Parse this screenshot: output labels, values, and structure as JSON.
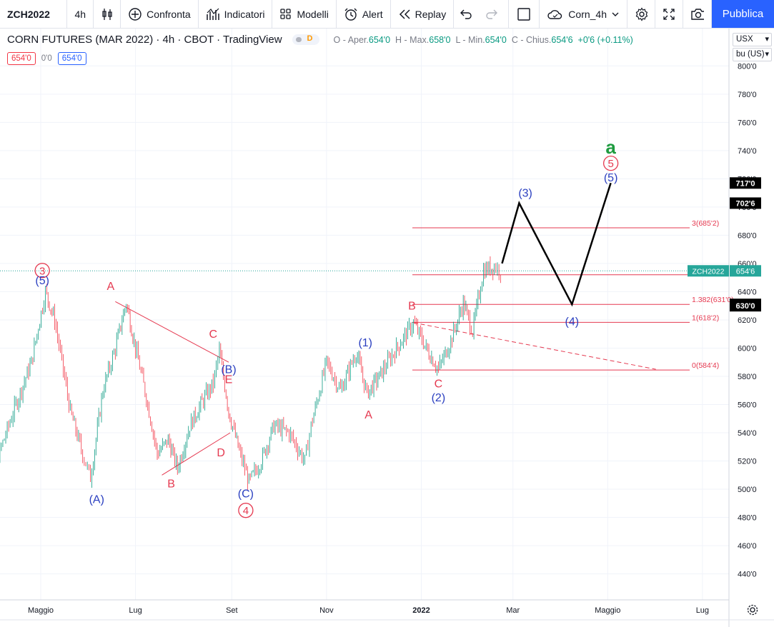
{
  "toolbar": {
    "symbol": "ZCH2022",
    "interval": "4h",
    "compare": "Confronta",
    "indicators": "Indicatori",
    "templates": "Modelli",
    "alert": "Alert",
    "replay": "Replay",
    "layout": "Corn_4h",
    "publish": "Pubblica"
  },
  "legend": {
    "title": "CORN FUTURES (MAR 2022) · 4h · CBOT · TradingView",
    "badge": "D",
    "o_label": "O - Aper.",
    "o": "654'0",
    "h_label": "H - Max.",
    "h": "658'0",
    "l_label": "L - Min.",
    "l": "654'0",
    "c_label": "C - Chius.",
    "c": "654'6",
    "change": "+0'6 (+0.11%)"
  },
  "pricebox": {
    "bid": "654'0",
    "spread": "0'0",
    "ask": "654'0"
  },
  "axis_controls": {
    "currency": "USX",
    "unit": "bu (US)"
  },
  "colors": {
    "accent": "#2962ff",
    "up": "#089981",
    "down": "#f23645",
    "wave_red": "#e53950",
    "wave_blue": "#2a3fc0",
    "wave_green": "#1e9b3f"
  },
  "chart_data": {
    "type": "candlestick",
    "symbol": "ZCH2022",
    "last_price": 654.75,
    "last_price_label": "654'6",
    "y_ticks": [
      "800'0",
      "780'0",
      "760'0",
      "740'0",
      "720'0",
      "700'0",
      "680'0",
      "660'0",
      "640'0",
      "620'0",
      "600'0",
      "580'0",
      "560'0",
      "540'0",
      "520'0",
      "500'0",
      "480'0",
      "460'0",
      "440'0"
    ],
    "y_tick_values": [
      800,
      780,
      760,
      740,
      720,
      700,
      680,
      660,
      640,
      620,
      600,
      580,
      560,
      540,
      520,
      500,
      480,
      460,
      440
    ],
    "x_ticks": [
      {
        "label": "Maggio",
        "date": "2021-05-01"
      },
      {
        "label": "Lug",
        "date": "2021-07-01"
      },
      {
        "label": "Set",
        "date": "2021-09-01"
      },
      {
        "label": "Nov",
        "date": "2021-11-01"
      },
      {
        "label": "2022",
        "date": "2022-01-01"
      },
      {
        "label": "Mar",
        "date": "2022-03-01"
      },
      {
        "label": "Maggio",
        "date": "2022-05-01"
      },
      {
        "label": "Lug",
        "date": "2022-07-01"
      }
    ],
    "price_path": [
      {
        "date": "2021-03-21",
        "price": 490
      },
      {
        "date": "2021-04-01",
        "price": 515
      },
      {
        "date": "2021-04-15",
        "price": 560
      },
      {
        "date": "2021-04-25",
        "price": 590
      },
      {
        "date": "2021-05-04",
        "price": 640
      },
      {
        "date": "2021-05-10",
        "price": 620
      },
      {
        "date": "2021-05-20",
        "price": 555
      },
      {
        "date": "2021-05-28",
        "price": 525
      },
      {
        "date": "2021-06-02",
        "price": 508
      },
      {
        "date": "2021-06-10",
        "price": 570
      },
      {
        "date": "2021-06-18",
        "price": 600
      },
      {
        "date": "2021-06-25",
        "price": 632
      },
      {
        "date": "2021-07-01",
        "price": 600
      },
      {
        "date": "2021-07-08",
        "price": 565
      },
      {
        "date": "2021-07-15",
        "price": 525
      },
      {
        "date": "2021-07-22",
        "price": 535
      },
      {
        "date": "2021-07-28",
        "price": 515
      },
      {
        "date": "2021-08-05",
        "price": 545
      },
      {
        "date": "2021-08-12",
        "price": 560
      },
      {
        "date": "2021-08-20",
        "price": 575
      },
      {
        "date": "2021-08-24",
        "price": 598
      },
      {
        "date": "2021-08-30",
        "price": 555
      },
      {
        "date": "2021-09-05",
        "price": 530
      },
      {
        "date": "2021-09-12",
        "price": 505
      },
      {
        "date": "2021-09-20",
        "price": 520
      },
      {
        "date": "2021-09-28",
        "price": 545
      },
      {
        "date": "2021-10-08",
        "price": 540
      },
      {
        "date": "2021-10-18",
        "price": 520
      },
      {
        "date": "2021-10-22",
        "price": 545
      },
      {
        "date": "2021-11-01",
        "price": 590
      },
      {
        "date": "2021-11-10",
        "price": 570
      },
      {
        "date": "2021-11-20",
        "price": 597
      },
      {
        "date": "2021-11-27",
        "price": 568
      },
      {
        "date": "2021-12-05",
        "price": 580
      },
      {
        "date": "2021-12-15",
        "price": 598
      },
      {
        "date": "2021-12-27",
        "price": 618
      },
      {
        "date": "2022-01-05",
        "price": 598
      },
      {
        "date": "2022-01-12",
        "price": 585
      },
      {
        "date": "2022-01-20",
        "price": 605
      },
      {
        "date": "2022-01-28",
        "price": 632
      },
      {
        "date": "2022-02-03",
        "price": 612
      },
      {
        "date": "2022-02-10",
        "price": 655
      },
      {
        "date": "2022-02-17",
        "price": 658
      },
      {
        "date": "2022-02-21",
        "price": 654.75
      }
    ],
    "horizontal_levels": [
      {
        "label": "3(685'2)",
        "price": 685.25
      },
      {
        "label": "1.382(631'0)",
        "price": 631
      },
      {
        "label": "1(618'2)",
        "price": 618.25
      },
      {
        "label": "0(584'4)",
        "price": 584.5
      },
      {
        "label": "",
        "price": 652
      }
    ],
    "price_labels": [
      {
        "label": "717'0",
        "price": 717,
        "style": "dark"
      },
      {
        "label": "702'6",
        "price": 702.75,
        "style": "dark"
      },
      {
        "label": "631'0",
        "price": 631,
        "style": "dark"
      },
      {
        "label": "630'0",
        "price": 630,
        "style": "dark"
      },
      {
        "symbol": "ZCH2022",
        "label": "654'6",
        "price": 654.75,
        "style": "last"
      }
    ],
    "trendlines": [
      {
        "style": "solid",
        "color": "red",
        "from": {
          "date": "2021-06-18",
          "price": 633
        },
        "to": {
          "date": "2021-08-30",
          "price": 590
        }
      },
      {
        "style": "solid",
        "color": "red",
        "from": {
          "date": "2021-07-18",
          "price": 510
        },
        "to": {
          "date": "2021-08-31",
          "price": 540
        }
      },
      {
        "style": "dashed",
        "color": "red",
        "from": {
          "date": "2021-12-27",
          "price": 618
        },
        "to": {
          "date": "2022-06-01",
          "price": 585
        }
      }
    ],
    "projection": [
      {
        "date": "2022-02-22",
        "price": 660
      },
      {
        "date": "2022-03-05",
        "price": 702.75
      },
      {
        "date": "2022-04-08",
        "price": 631
      },
      {
        "date": "2022-05-03",
        "price": 717
      }
    ],
    "wave_labels": [
      {
        "text": "3",
        "circled": true,
        "color": "red",
        "date": "2021-05-02",
        "price": 655
      },
      {
        "text": "(5)",
        "color": "blue",
        "date": "2021-05-02",
        "price": 648
      },
      {
        "text": "A",
        "color": "red",
        "date": "2021-06-15",
        "price": 644
      },
      {
        "text": "(A)",
        "color": "blue",
        "date": "2021-06-06",
        "price": 493
      },
      {
        "text": "B",
        "color": "red",
        "date": "2021-07-24",
        "price": 504
      },
      {
        "text": "C",
        "color": "red",
        "date": "2021-08-20",
        "price": 610
      },
      {
        "text": "(B)",
        "color": "blue",
        "date": "2021-08-30",
        "price": 585
      },
      {
        "text": "E",
        "color": "red",
        "date": "2021-08-30",
        "price": 578
      },
      {
        "text": "D",
        "color": "red",
        "date": "2021-08-25",
        "price": 526
      },
      {
        "text": "(C)",
        "color": "blue",
        "date": "2021-09-10",
        "price": 497
      },
      {
        "text": "4",
        "circled": true,
        "color": "red",
        "date": "2021-09-10",
        "price": 485
      },
      {
        "text": "(1)",
        "color": "blue",
        "date": "2021-11-26",
        "price": 604
      },
      {
        "text": "A",
        "color": "red",
        "date": "2021-11-28",
        "price": 553
      },
      {
        "text": "B",
        "color": "red",
        "date": "2021-12-26",
        "price": 630
      },
      {
        "text": "C",
        "color": "red",
        "date": "2022-01-12",
        "price": 575
      },
      {
        "text": "(2)",
        "color": "blue",
        "date": "2022-01-12",
        "price": 565
      },
      {
        "text": "(3)",
        "color": "blue",
        "date": "2022-03-09",
        "price": 710
      },
      {
        "text": "(4)",
        "color": "blue",
        "date": "2022-04-08",
        "price": 619
      },
      {
        "text": "a",
        "color": "green",
        "bold": true,
        "date": "2022-05-03",
        "price": 742
      },
      {
        "text": "5",
        "circled": true,
        "color": "red",
        "date": "2022-05-03",
        "price": 731
      },
      {
        "text": "(5)",
        "color": "blue",
        "date": "2022-05-03",
        "price": 721
      }
    ],
    "grid": true,
    "legend_placement": "top-left"
  }
}
